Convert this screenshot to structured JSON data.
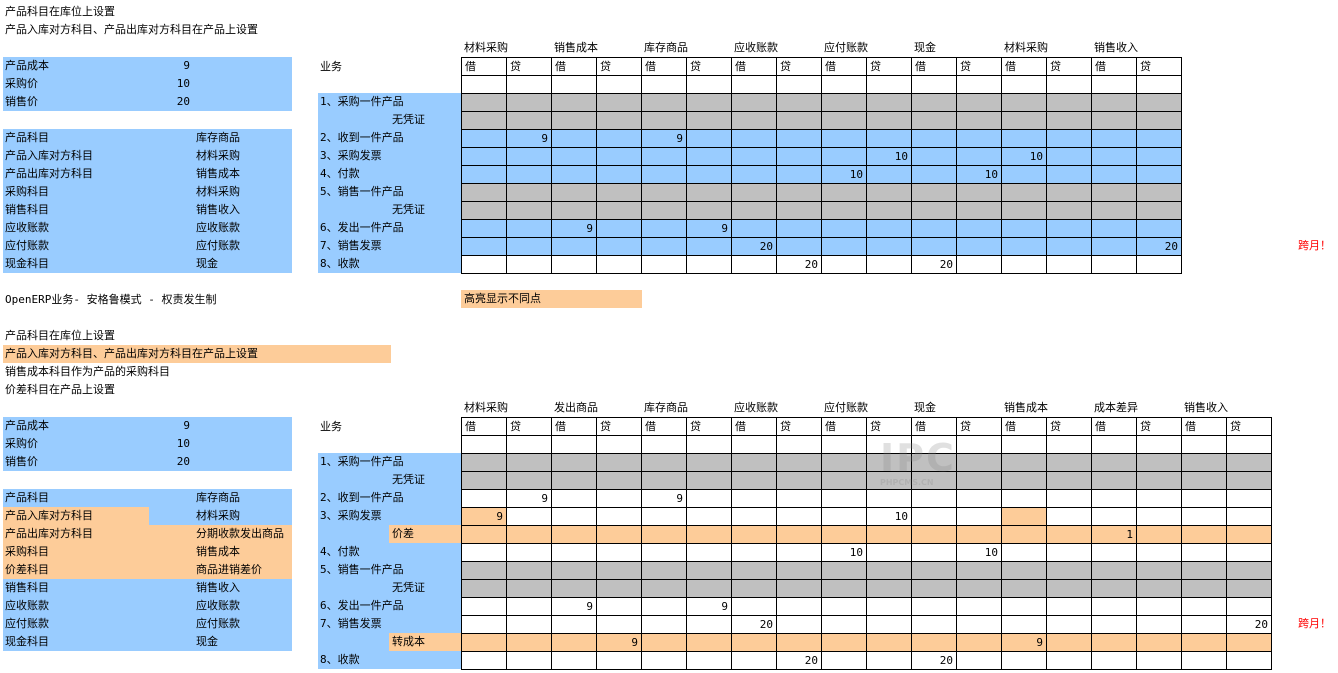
{
  "top": {
    "note1": "产品科目在库位上设置",
    "note2": "产品入库对方科目、产品出库对方科目在产品上设置",
    "params": [
      [
        "产品成本",
        "9"
      ],
      [
        "采购价",
        "10"
      ],
      [
        "销售价",
        "20"
      ]
    ],
    "accounts": [
      [
        "产品科目",
        "库存商品"
      ],
      [
        "产品入库对方科目",
        "材料采购"
      ],
      [
        "产品出库对方科目",
        "销售成本"
      ],
      [
        "采购科目",
        "材料采购"
      ],
      [
        "销售科目",
        "销售收入"
      ],
      [
        "应收账款",
        "应收账款"
      ],
      [
        "应付账款",
        "应付账款"
      ],
      [
        "现金科目",
        "现金"
      ]
    ],
    "biz_label": "业务",
    "account_headers": [
      "材料采购",
      "销售成本",
      "库存商品",
      "应收账款",
      "应付账款",
      "现金",
      "材料采购",
      "销售收入"
    ],
    "dc": [
      "借",
      "贷"
    ],
    "rows": [
      {
        "label": "1、采购一件产品",
        "cells": [
          "",
          "",
          "",
          "",
          "",
          "",
          "",
          "",
          "",
          "",
          "",
          "",
          "",
          "",
          "",
          ""
        ]
      },
      {
        "label": "无凭证",
        "cells": [
          "",
          "",
          "",
          "",
          "",
          "",
          "",
          "",
          "",
          "",
          "",
          "",
          "",
          "",
          "",
          ""
        ]
      },
      {
        "label": "2、收到一件产品",
        "cells": [
          "",
          "9",
          "",
          "",
          "9",
          "",
          "",
          "",
          "",
          "",
          "",
          "",
          "",
          "",
          "",
          ""
        ]
      },
      {
        "label": "3、采购发票",
        "cells": [
          "",
          "",
          "",
          "",
          "",
          "",
          "",
          "",
          "",
          "10",
          "",
          "",
          "10",
          "",
          "",
          ""
        ]
      },
      {
        "label": "4、付款",
        "cells": [
          "",
          "",
          "",
          "",
          "",
          "",
          "",
          "",
          "10",
          "",
          "",
          "10",
          "",
          "",
          "",
          ""
        ]
      },
      {
        "label": "5、销售一件产品",
        "cells": [
          "",
          "",
          "",
          "",
          "",
          "",
          "",
          "",
          "",
          "",
          "",
          "",
          "",
          "",
          "",
          ""
        ]
      },
      {
        "label": "无凭证",
        "cells": [
          "",
          "",
          "",
          "",
          "",
          "",
          "",
          "",
          "",
          "",
          "",
          "",
          "",
          "",
          "",
          ""
        ]
      },
      {
        "label": "6、发出一件产品",
        "cells": [
          "",
          "",
          "9",
          "",
          "",
          "9",
          "",
          "",
          "",
          "",
          "",
          "",
          "",
          "",
          "",
          ""
        ]
      },
      {
        "label": "7、销售发票",
        "cells": [
          "",
          "",
          "",
          "",
          "",
          "",
          "20",
          "",
          "",
          "",
          "",
          "",
          "",
          "",
          "",
          "20"
        ]
      },
      {
        "label": "8、收款",
        "cells": [
          "",
          "",
          "",
          "",
          "",
          "",
          "",
          "20",
          "",
          "",
          "20",
          "",
          "",
          "",
          "",
          ""
        ]
      }
    ],
    "remark": "跨月！"
  },
  "mid": {
    "mode": "OpenERP业务- 安格鲁模式 - 权责发生制",
    "legend": "高亮显示不同点"
  },
  "bottom": {
    "note1": "产品科目在库位上设置",
    "note2": "产品入库对方科目、产品出库对方科目在产品上设置",
    "note3": "销售成本科目作为产品的采购科目",
    "note4": "价差科目在产品上设置",
    "params": [
      [
        "产品成本",
        "9"
      ],
      [
        "采购价",
        "10"
      ],
      [
        "销售价",
        "20"
      ]
    ],
    "accounts": [
      [
        "产品科目",
        "库存商品"
      ],
      [
        "产品入库对方科目",
        "材料采购"
      ],
      [
        "产品出库对方科目",
        "分期收款发出商品"
      ],
      [
        "采购科目",
        "销售成本"
      ],
      [
        "价差科目",
        "商品进销差价"
      ],
      [
        "销售科目",
        "销售收入"
      ],
      [
        "应收账款",
        "应收账款"
      ],
      [
        "应付账款",
        "应付账款"
      ],
      [
        "现金科目",
        "现金"
      ]
    ],
    "biz_label": "业务",
    "account_headers": [
      "材料采购",
      "发出商品",
      "库存商品",
      "应收账款",
      "应付账款",
      "现金",
      "销售成本",
      "成本差异",
      "销售收入"
    ],
    "dc": [
      "借",
      "贷"
    ],
    "rows": [
      {
        "label": "1、采购一件产品",
        "cells": [
          "",
          "",
          "",
          "",
          "",
          "",
          "",
          "",
          "",
          "",
          "",
          "",
          "",
          "",
          "",
          "",
          "",
          ""
        ]
      },
      {
        "label": "无凭证",
        "cells": [
          "",
          "",
          "",
          "",
          "",
          "",
          "",
          "",
          "",
          "",
          "",
          "",
          "",
          "",
          "",
          "",
          "",
          ""
        ]
      },
      {
        "label": "2、收到一件产品",
        "cells": [
          "",
          "9",
          "",
          "",
          "9",
          "",
          "",
          "",
          "",
          "",
          "",
          "",
          "",
          "",
          "",
          "",
          "",
          ""
        ]
      },
      {
        "label": "3、采购发票",
        "cells": [
          "9",
          "",
          "",
          "",
          "",
          "",
          "",
          "",
          "",
          "10",
          "",
          "",
          "",
          "",
          "",
          "",
          "",
          ""
        ]
      },
      {
        "label": "价差",
        "cells": [
          "",
          "",
          "",
          "",
          "",
          "",
          "",
          "",
          "",
          "",
          "",
          "",
          "",
          "",
          "1",
          "",
          "",
          ""
        ]
      },
      {
        "label": "4、付款",
        "cells": [
          "",
          "",
          "",
          "",
          "",
          "",
          "",
          "",
          "10",
          "",
          "",
          "10",
          "",
          "",
          "",
          "",
          "",
          ""
        ]
      },
      {
        "label": "5、销售一件产品",
        "cells": [
          "",
          "",
          "",
          "",
          "",
          "",
          "",
          "",
          "",
          "",
          "",
          "",
          "",
          "",
          "",
          "",
          "",
          ""
        ]
      },
      {
        "label": "无凭证",
        "cells": [
          "",
          "",
          "",
          "",
          "",
          "",
          "",
          "",
          "",
          "",
          "",
          "",
          "",
          "",
          "",
          "",
          "",
          ""
        ]
      },
      {
        "label": "6、发出一件产品",
        "cells": [
          "",
          "",
          "9",
          "",
          "",
          "9",
          "",
          "",
          "",
          "",
          "",
          "",
          "",
          "",
          "",
          "",
          "",
          ""
        ]
      },
      {
        "label": "7、销售发票",
        "cells": [
          "",
          "",
          "",
          "",
          "",
          "",
          "20",
          "",
          "",
          "",
          "",
          "",
          "",
          "",
          "",
          "",
          "",
          "20"
        ]
      },
      {
        "label": "转成本",
        "cells": [
          "",
          "",
          "",
          "9",
          "",
          "",
          "",
          "",
          "",
          "",
          "",
          "",
          "9",
          "",
          "",
          "",
          "",
          ""
        ]
      },
      {
        "label": "8、收款",
        "cells": [
          "",
          "",
          "",
          "",
          "",
          "",
          "",
          "20",
          "",
          "",
          "20",
          "",
          "",
          "",
          "",
          "",
          "",
          ""
        ]
      }
    ],
    "remark": "跨月！"
  },
  "watermark": "PHPCMS.CN",
  "colors": {
    "blue": "#99ccff",
    "orange": "#fdcc99",
    "gray": "#c0c0c0",
    "remark": "#ff0000"
  }
}
